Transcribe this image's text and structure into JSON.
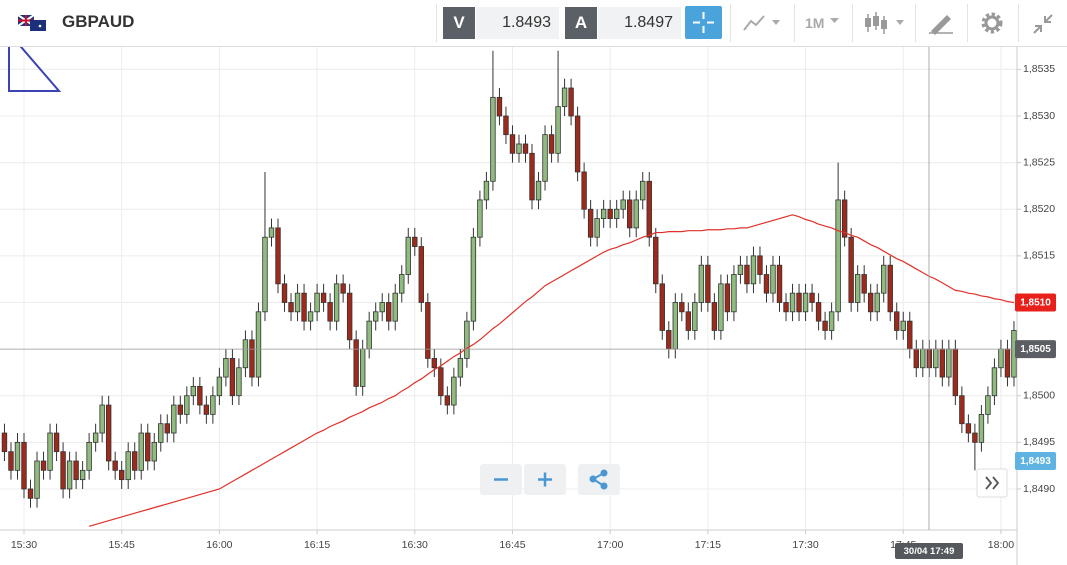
{
  "toolbar": {
    "symbol": "GBPAUD",
    "bid_label": "V",
    "bid": 1.8493,
    "ask_label": "A",
    "ask": 1.8497,
    "timeframe": "1M"
  },
  "chart_data": {
    "type": "candlestick",
    "categories": [
      null,
      null,
      null,
      "15:30",
      null,
      null,
      null,
      null,
      null,
      null,
      null,
      null,
      null,
      null,
      null,
      null,
      null,
      null,
      "15:45",
      null,
      null,
      null,
      null,
      null,
      null,
      null,
      null,
      null,
      null,
      null,
      null,
      null,
      null,
      "16:00",
      null,
      null,
      null,
      null,
      null,
      null,
      null,
      null,
      null,
      null,
      null,
      null,
      null,
      null,
      "16:15",
      null,
      null,
      null,
      null,
      null,
      null,
      null,
      null,
      null,
      null,
      null,
      null,
      null,
      null,
      "16:30",
      null,
      null,
      null,
      null,
      null,
      null,
      null,
      null,
      null,
      null,
      null,
      null,
      null,
      null,
      "16:45",
      null,
      null,
      null,
      null,
      null,
      null,
      null,
      null,
      null,
      null,
      null,
      null,
      null,
      null,
      "17:00",
      null,
      null,
      null,
      null,
      null,
      null,
      null,
      null,
      null,
      null,
      null,
      null,
      null,
      null,
      "17:15",
      null,
      null,
      null,
      null,
      null,
      null,
      null,
      null,
      null,
      null,
      null,
      null,
      null,
      null,
      "17:30",
      null,
      null,
      null,
      null,
      null,
      null,
      null,
      null,
      null,
      null,
      null,
      null,
      null,
      null,
      "17:45",
      null,
      null,
      null,
      null,
      null,
      null,
      null,
      null,
      null,
      null,
      null,
      null,
      null,
      null,
      "18:00",
      null,
      null
    ],
    "open": [
      1.8496,
      1.8494,
      1.8492,
      1.8495,
      1.849,
      1.8489,
      1.8493,
      1.8492,
      1.8496,
      1.8494,
      1.849,
      1.8493,
      1.8491,
      1.8492,
      1.8495,
      1.8496,
      1.8499,
      1.8493,
      1.8492,
      1.8491,
      1.8494,
      1.8492,
      1.8496,
      1.8493,
      1.8495,
      1.8497,
      1.8496,
      1.8499,
      1.8498,
      1.85,
      1.8501,
      1.8499,
      1.8498,
      1.85,
      1.8502,
      1.8504,
      1.85,
      1.8503,
      1.8506,
      1.8502,
      1.8509,
      1.8517,
      1.8518,
      1.8512,
      1.851,
      1.8509,
      1.8511,
      1.8508,
      1.8509,
      1.8511,
      1.851,
      1.8508,
      1.8512,
      1.8511,
      1.8506,
      1.8501,
      1.8505,
      1.8508,
      1.8509,
      1.851,
      1.8508,
      1.8511,
      1.8513,
      1.8517,
      1.8516,
      1.851,
      1.8504,
      1.8503,
      1.85,
      1.8499,
      1.8502,
      1.8504,
      1.8508,
      1.8517,
      1.8521,
      1.8523,
      1.8532,
      1.853,
      1.8528,
      1.8526,
      1.8527,
      1.8526,
      1.8521,
      1.8523,
      1.8528,
      1.8526,
      1.8531,
      1.8533,
      1.853,
      1.8524,
      1.852,
      1.8517,
      1.8519,
      1.852,
      1.8519,
      1.852,
      1.8521,
      1.8518,
      1.8521,
      1.8523,
      1.8517,
      1.8512,
      1.8507,
      1.8505,
      1.851,
      1.8509,
      1.8507,
      1.851,
      1.8514,
      1.851,
      1.8507,
      1.8512,
      1.8509,
      1.8513,
      1.8514,
      1.8512,
      1.8515,
      1.8513,
      1.8511,
      1.8514,
      1.851,
      1.8509,
      1.8511,
      1.8509,
      1.8511,
      1.851,
      1.8508,
      1.8507,
      1.8509,
      1.8521,
      1.8517,
      1.851,
      1.8513,
      1.8511,
      1.8509,
      1.8511,
      1.8514,
      1.8509,
      1.8507,
      1.8508,
      1.8505,
      1.8503,
      1.8505,
      1.8503,
      1.8505,
      1.8502,
      1.8505,
      1.85,
      1.8497,
      1.8496,
      1.8495,
      1.8498,
      1.85,
      1.8503,
      1.8505,
      1.8502
    ],
    "high": [
      1.8497,
      1.8495,
      1.8496,
      1.8496,
      1.8491,
      1.8494,
      1.8494,
      1.8497,
      1.8497,
      1.8495,
      1.8494,
      1.8494,
      1.8493,
      1.8496,
      1.8497,
      1.85,
      1.85,
      1.8494,
      1.8493,
      1.8495,
      1.8495,
      1.8497,
      1.8497,
      1.8496,
      1.8498,
      1.8498,
      1.85,
      1.85,
      1.8501,
      1.8502,
      1.8502,
      1.85,
      1.8501,
      1.8503,
      1.8505,
      1.8505,
      1.8504,
      1.8507,
      1.8507,
      1.851,
      1.8524,
      1.8519,
      1.8519,
      1.8513,
      1.8511,
      1.8512,
      1.8512,
      1.851,
      1.8512,
      1.8512,
      1.8511,
      1.8513,
      1.8513,
      1.8512,
      1.8507,
      1.8506,
      1.8509,
      1.851,
      1.8511,
      1.8511,
      1.8512,
      1.8514,
      1.8518,
      1.8518,
      1.8517,
      1.8511,
      1.8505,
      1.8504,
      1.8501,
      1.8503,
      1.8505,
      1.8509,
      1.8518,
      1.8522,
      1.8524,
      1.8537,
      1.8533,
      1.8531,
      1.8529,
      1.8528,
      1.8528,
      1.8527,
      1.8524,
      1.8529,
      1.8529,
      1.8537,
      1.8534,
      1.8534,
      1.8531,
      1.8525,
      1.8521,
      1.852,
      1.8521,
      1.8521,
      1.8521,
      1.8522,
      1.8522,
      1.8522,
      1.8524,
      1.8524,
      1.8518,
      1.8513,
      1.8508,
      1.8511,
      1.8511,
      1.851,
      1.8511,
      1.8515,
      1.8515,
      1.8511,
      1.8513,
      1.8513,
      1.8514,
      1.8515,
      1.8515,
      1.8516,
      1.8516,
      1.8514,
      1.8515,
      1.8515,
      1.8511,
      1.8512,
      1.8512,
      1.8512,
      1.8512,
      1.8511,
      1.8509,
      1.851,
      1.8525,
      1.8522,
      1.8518,
      1.8514,
      1.8514,
      1.8512,
      1.8512,
      1.8515,
      1.8515,
      1.851,
      1.8509,
      1.8509,
      1.8506,
      1.8506,
      1.8506,
      1.8506,
      1.8506,
      1.8506,
      1.8506,
      1.8501,
      1.8498,
      1.8497,
      1.8499,
      1.8501,
      1.8504,
      1.8506,
      1.8506,
      1.8508
    ],
    "low": [
      1.8493,
      1.8491,
      1.8491,
      1.8489,
      1.8488,
      1.8488,
      1.8491,
      1.8491,
      1.8493,
      1.8489,
      1.8489,
      1.849,
      1.849,
      1.8491,
      1.8494,
      1.8495,
      1.8492,
      1.8491,
      1.849,
      1.849,
      1.8491,
      1.8491,
      1.8492,
      1.8492,
      1.8494,
      1.8495,
      1.8495,
      1.8497,
      1.8497,
      1.8499,
      1.8498,
      1.8497,
      1.8497,
      1.8499,
      1.8501,
      1.8499,
      1.8499,
      1.8502,
      1.8501,
      1.8501,
      1.8508,
      1.8516,
      1.8511,
      1.8509,
      1.8508,
      1.8508,
      1.8507,
      1.8507,
      1.8508,
      1.8509,
      1.8507,
      1.8507,
      1.851,
      1.8505,
      1.85,
      1.85,
      1.8504,
      1.8507,
      1.8508,
      1.8507,
      1.8507,
      1.851,
      1.8512,
      1.8515,
      1.8509,
      1.8503,
      1.8502,
      1.8499,
      1.8498,
      1.8498,
      1.8501,
      1.8503,
      1.8507,
      1.8516,
      1.852,
      1.8522,
      1.8529,
      1.8527,
      1.8525,
      1.8525,
      1.8525,
      1.852,
      1.852,
      1.8522,
      1.8525,
      1.8525,
      1.853,
      1.8529,
      1.8523,
      1.8519,
      1.8516,
      1.8516,
      1.8518,
      1.8518,
      1.8518,
      1.8519,
      1.8517,
      1.8517,
      1.852,
      1.8516,
      1.8511,
      1.8506,
      1.8504,
      1.8504,
      1.8508,
      1.8506,
      1.8506,
      1.8509,
      1.8509,
      1.8506,
      1.8506,
      1.8508,
      1.8508,
      1.8512,
      1.8511,
      1.8511,
      1.8512,
      1.851,
      1.851,
      1.8509,
      1.8508,
      1.8508,
      1.8508,
      1.8508,
      1.8509,
      1.8507,
      1.8506,
      1.8506,
      1.8508,
      1.8516,
      1.8509,
      1.8509,
      1.851,
      1.8508,
      1.8508,
      1.851,
      1.8508,
      1.8506,
      1.8506,
      1.8504,
      1.8502,
      1.8502,
      1.8502,
      1.8502,
      1.8501,
      1.8501,
      1.8499,
      1.8496,
      1.8495,
      1.8492,
      1.8494,
      1.8497,
      1.8499,
      1.8502,
      1.8501,
      1.8501
    ],
    "close": [
      1.8494,
      1.8492,
      1.8495,
      1.849,
      1.8489,
      1.8493,
      1.8492,
      1.8496,
      1.8494,
      1.849,
      1.8493,
      1.8491,
      1.8492,
      1.8495,
      1.8496,
      1.8499,
      1.8493,
      1.8492,
      1.8491,
      1.8494,
      1.8492,
      1.8496,
      1.8493,
      1.8495,
      1.8497,
      1.8496,
      1.8499,
      1.8498,
      1.85,
      1.8501,
      1.8499,
      1.8498,
      1.85,
      1.8502,
      1.8504,
      1.85,
      1.8503,
      1.8506,
      1.8502,
      1.8509,
      1.8517,
      1.8518,
      1.8512,
      1.851,
      1.8509,
      1.8511,
      1.8508,
      1.8509,
      1.8511,
      1.851,
      1.8508,
      1.8512,
      1.8511,
      1.8506,
      1.8501,
      1.8505,
      1.8508,
      1.8509,
      1.851,
      1.8508,
      1.8511,
      1.8513,
      1.8517,
      1.8516,
      1.851,
      1.8504,
      1.8503,
      1.85,
      1.8499,
      1.8502,
      1.8504,
      1.8508,
      1.8517,
      1.8521,
      1.8523,
      1.8532,
      1.853,
      1.8528,
      1.8526,
      1.8527,
      1.8526,
      1.8521,
      1.8523,
      1.8528,
      1.8526,
      1.8531,
      1.8533,
      1.853,
      1.8524,
      1.852,
      1.8517,
      1.8519,
      1.852,
      1.8519,
      1.852,
      1.8521,
      1.8518,
      1.8521,
      1.8523,
      1.8517,
      1.8512,
      1.8507,
      1.8505,
      1.851,
      1.8509,
      1.8507,
      1.851,
      1.8514,
      1.851,
      1.8507,
      1.8512,
      1.8509,
      1.8513,
      1.8514,
      1.8512,
      1.8515,
      1.8513,
      1.8511,
      1.8514,
      1.851,
      1.8509,
      1.8511,
      1.8509,
      1.8511,
      1.851,
      1.8508,
      1.8507,
      1.8509,
      1.8521,
      1.8517,
      1.851,
      1.8513,
      1.8511,
      1.8509,
      1.8511,
      1.8514,
      1.8509,
      1.8507,
      1.8508,
      1.8505,
      1.8503,
      1.8505,
      1.8503,
      1.8505,
      1.8502,
      1.8505,
      1.85,
      1.8497,
      1.8496,
      1.8495,
      1.8498,
      1.85,
      1.8503,
      1.8505,
      1.8502,
      1.8507
    ],
    "up_color": "#8fbb7e",
    "down_color": "#9e2a1c",
    "moving_average": {
      "color": "#e0302a",
      "values": [
        null,
        null,
        null,
        null,
        null,
        null,
        null,
        null,
        null,
        null,
        null,
        null,
        null,
        1.8486,
        1.84862,
        1.84864,
        1.84866,
        1.84868,
        1.8487,
        1.84872,
        1.84874,
        1.84876,
        1.84878,
        1.8488,
        1.84882,
        1.84884,
        1.84886,
        1.84888,
        1.8489,
        1.84892,
        1.84894,
        1.84896,
        1.84898,
        1.849,
        1.84904,
        1.84908,
        1.84912,
        1.84916,
        1.8492,
        1.84924,
        1.84928,
        1.84932,
        1.84936,
        1.8494,
        1.84944,
        1.84948,
        1.84952,
        1.84956,
        1.8496,
        1.84963,
        1.84967,
        1.8497,
        1.84973,
        1.84977,
        1.8498,
        1.84983,
        1.84987,
        1.8499,
        1.84993,
        1.84997,
        1.85,
        1.85005,
        1.85009,
        1.85014,
        1.85018,
        1.85023,
        1.85028,
        1.85032,
        1.85037,
        1.85042,
        1.85046,
        1.85051,
        1.85055,
        1.8506,
        1.85066,
        1.85072,
        1.85077,
        1.85083,
        1.85089,
        1.85095,
        1.85101,
        1.85106,
        1.85112,
        1.85118,
        1.85122,
        1.85126,
        1.8513,
        1.85134,
        1.85138,
        1.85142,
        1.85146,
        1.8515,
        1.85154,
        1.85157,
        1.85159,
        1.85162,
        1.85164,
        1.85167,
        1.8517,
        1.85172,
        1.85175,
        1.85175,
        1.85176,
        1.85176,
        1.85176,
        1.85177,
        1.85177,
        1.85177,
        1.85178,
        1.85178,
        1.85178,
        1.85179,
        1.85179,
        1.8518,
        1.8518,
        1.85182,
        1.85184,
        1.85186,
        1.85188,
        1.8519,
        1.85192,
        1.85194,
        1.85192,
        1.85189,
        1.85187,
        1.85184,
        1.85182,
        1.8518,
        1.85177,
        1.85175,
        1.85172,
        1.8517,
        1.85166,
        1.85162,
        1.85159,
        1.85155,
        1.85151,
        1.85147,
        1.85144,
        1.8514,
        1.85136,
        1.85132,
        1.85128,
        1.85125,
        1.85121,
        1.85117,
        1.85113,
        1.85112,
        1.8511,
        1.85109,
        1.85107,
        1.85106,
        1.85104,
        1.85103,
        1.85101,
        1.851
      ]
    },
    "ylim": [
      1.84856,
      1.85374
    ],
    "yticks": [
      {
        "value": 1.849,
        "label": "1,8490"
      },
      {
        "value": 1.8495,
        "label": "1,8495"
      },
      {
        "value": 1.85,
        "label": "1,8500"
      },
      {
        "value": 1.8505,
        "label": "1,8505"
      },
      {
        "value": 1.851,
        "label": "1,8510"
      },
      {
        "value": 1.8515,
        "label": "1,8515"
      },
      {
        "value": 1.852,
        "label": "1,8520"
      },
      {
        "value": 1.8525,
        "label": "1,8525"
      },
      {
        "value": 1.853,
        "label": "1,8530"
      },
      {
        "value": 1.8535,
        "label": "1,8535"
      }
    ],
    "grid": true,
    "price_tags": [
      {
        "value": 1.851,
        "label": "1,8510",
        "color": "#e8201c"
      },
      {
        "value": 1.8505,
        "label": "1,8505",
        "color": "#5b5e63"
      },
      {
        "value": 1.8493,
        "label": "1,8493",
        "color": "#5fb3e3"
      }
    ],
    "crosshair_time": "30/04 17:49"
  }
}
